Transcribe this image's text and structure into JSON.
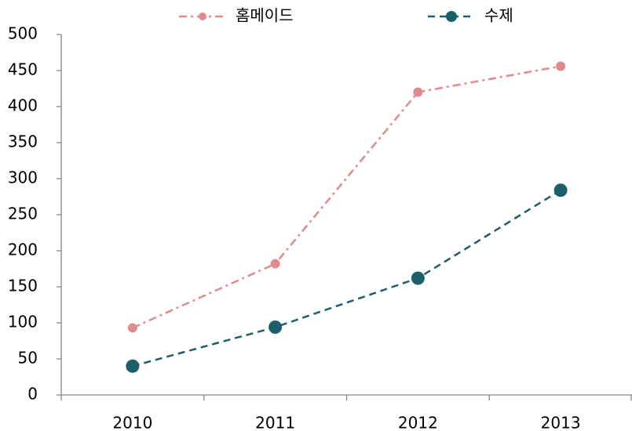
{
  "chart_data": {
    "type": "line",
    "categories": [
      "2010",
      "2011",
      "2012",
      "2013"
    ],
    "series": [
      {
        "name": "홈메이드",
        "color": "#e08a8c",
        "dash": "dashdot",
        "values": [
          93,
          182,
          420,
          456
        ]
      },
      {
        "name": "수제",
        "color": "#1d5e6b",
        "dash": "dash",
        "values": [
          40,
          94,
          162,
          284
        ]
      }
    ],
    "ylim": [
      0,
      500
    ],
    "yticks": [
      0,
      50,
      100,
      150,
      200,
      250,
      300,
      350,
      400,
      450,
      500
    ],
    "grid": false,
    "legend": "top"
  }
}
